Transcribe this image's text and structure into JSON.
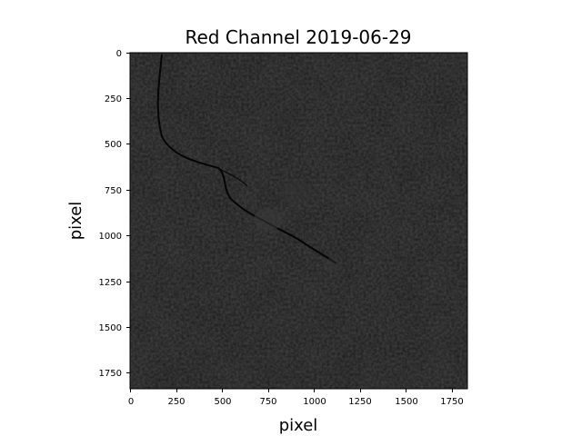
{
  "figure": {
    "title": "Red Channel 2019-06-29",
    "xlabel": "pixel",
    "ylabel": "pixel",
    "x_ticks": [
      "0",
      "250",
      "500",
      "750",
      "1000",
      "1250",
      "1500",
      "1750"
    ],
    "y_ticks": [
      "0",
      "250",
      "500",
      "750",
      "1000",
      "1250",
      "1500",
      "1750"
    ],
    "image_description_colors": {
      "background": "#111111",
      "bright_features": "#4a4a4a"
    }
  }
}
